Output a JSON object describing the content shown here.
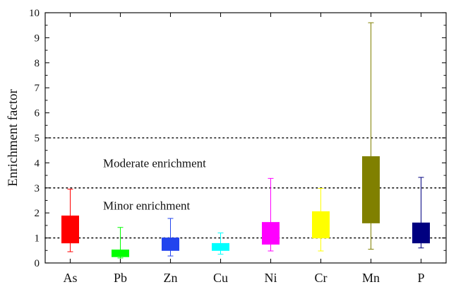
{
  "chart_data": {
    "type": "box",
    "ylabel": "Enrichment factor",
    "xlabel": "",
    "ylim": [
      0,
      10
    ],
    "yticks": [
      "0",
      "1",
      "2",
      "3",
      "4",
      "5",
      "6",
      "7",
      "8",
      "9",
      "10"
    ],
    "categories": [
      "As",
      "Pb",
      "Zn",
      "Cu",
      "Ni",
      "Cr",
      "Mn",
      "P"
    ],
    "boxes": [
      {
        "category": "As",
        "whisker_low": 0.45,
        "q1": 0.8,
        "q3": 1.88,
        "whisker_high": 2.95,
        "color": "#ff0000"
      },
      {
        "category": "Pb",
        "whisker_low": 0.2,
        "q1": 0.25,
        "q3": 0.52,
        "whisker_high": 1.42,
        "color": "#00ff00"
      },
      {
        "category": "Zn",
        "whisker_low": 0.28,
        "q1": 0.5,
        "q3": 1.0,
        "whisker_high": 1.78,
        "color": "#2244ee"
      },
      {
        "category": "Cu",
        "whisker_low": 0.35,
        "q1": 0.5,
        "q3": 0.78,
        "whisker_high": 1.2,
        "color": "#00ffff"
      },
      {
        "category": "Ni",
        "whisker_low": 0.48,
        "q1": 0.75,
        "q3": 1.62,
        "whisker_high": 3.38,
        "color": "#ff00ff"
      },
      {
        "category": "Cr",
        "whisker_low": 0.48,
        "q1": 1.0,
        "q3": 2.05,
        "whisker_high": 2.98,
        "color": "#ffff00"
      },
      {
        "category": "Mn",
        "whisker_low": 0.55,
        "q1": 1.6,
        "q3": 4.25,
        "whisker_high": 9.6,
        "color": "#808000"
      },
      {
        "category": "P",
        "whisker_low": 0.6,
        "q1": 0.8,
        "q3": 1.6,
        "whisker_high": 3.42,
        "color": "#000080"
      }
    ],
    "reference_lines": [
      1,
      3,
      5
    ],
    "annotations": [
      {
        "text": "Moderate enrichment",
        "y": 4.0
      },
      {
        "text": "Minor enrichment",
        "y": 2.3
      }
    ],
    "grid": false,
    "legend": "none"
  }
}
